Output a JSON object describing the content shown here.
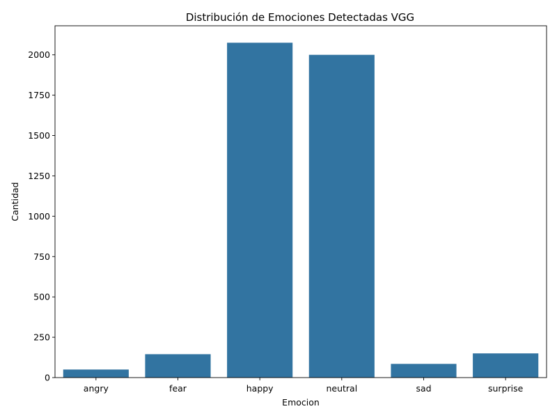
{
  "chart_data": {
    "type": "bar",
    "title": "Distribución de Emociones Detectadas VGG",
    "xlabel": "Emocion",
    "ylabel": "Cantidad",
    "categories": [
      "angry",
      "fear",
      "happy",
      "neutral",
      "sad",
      "surprise"
    ],
    "values": [
      50,
      145,
      2075,
      2000,
      85,
      150
    ],
    "ylim": [
      0,
      2180
    ],
    "yticks": [
      0,
      250,
      500,
      750,
      1000,
      1250,
      1500,
      1750,
      2000
    ],
    "grid": false,
    "bar_color": "#3274a1"
  }
}
